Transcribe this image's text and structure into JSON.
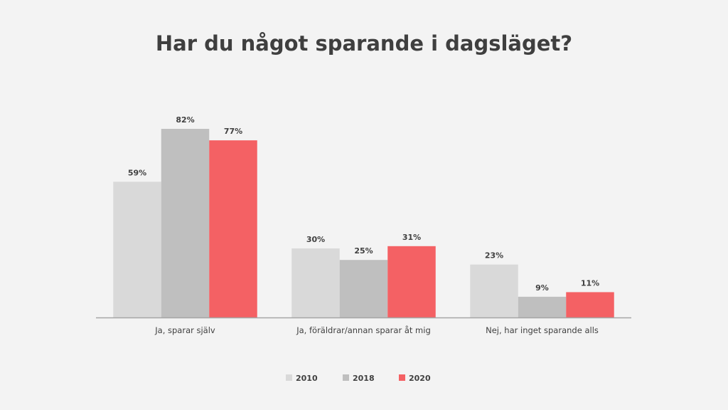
{
  "chart_data": {
    "type": "bar",
    "title": "Har du något sparande i dagsläget?",
    "categories": [
      "Ja, sparar själv",
      "Ja, föräldrar/annan sparar åt mig",
      "Nej, har inget sparande alls"
    ],
    "series": [
      {
        "name": "2010",
        "color": "#d9d9d9",
        "values": [
          59,
          30,
          23
        ],
        "labels": [
          "59%",
          "30%",
          "23%"
        ]
      },
      {
        "name": "2018",
        "color": "#bfbfbf",
        "values": [
          82,
          25,
          9
        ],
        "labels": [
          "82%",
          "25%",
          "9%"
        ]
      },
      {
        "name": "2020",
        "color": "#f46164",
        "values": [
          77,
          31,
          11
        ],
        "labels": [
          "77%",
          "31%",
          "11%"
        ]
      }
    ],
    "ylim": [
      0,
      82
    ],
    "grid": false,
    "legend": "bottom",
    "xlabel": "",
    "ylabel": ""
  }
}
